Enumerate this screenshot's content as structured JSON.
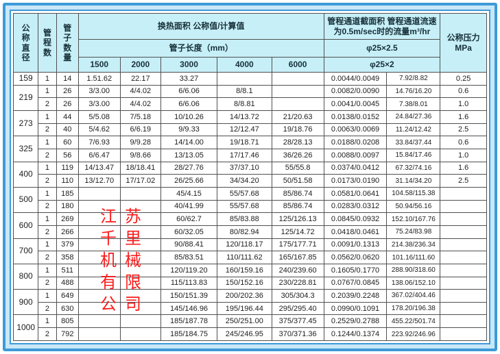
{
  "table": {
    "headers": {
      "diameter": "公称直径",
      "passes": "管程数",
      "tube_count": "管子数量",
      "heat_area": "换热面积 公称值/计算值",
      "tube_length": "管子长度（mm）",
      "length_cols": [
        "1500",
        "2000",
        "3000",
        "4000",
        "6000"
      ],
      "channel": "管程通道截面积 管程通道流速\n为0.5m/sec时的流量m³/hr",
      "phi_row1": "φ25×2.5",
      "phi_row2": "φ25×2",
      "pressure": "公称压力\nMPa"
    },
    "rows": [
      {
        "diameter": "159",
        "diameter_rowspan": 1,
        "pass": "1",
        "tubes": "14",
        "l1500": "1.51.62",
        "l2000": "22.17",
        "l3000": "33.27",
        "l4000": "",
        "l6000": "",
        "section": "0.0044/0.0049",
        "flow": "7.92/8.82",
        "pressure": "0.25"
      },
      {
        "diameter": "219",
        "diameter_rowspan": 2,
        "pass": "1",
        "tubes": "26",
        "l1500": "3/3.00",
        "l2000": "4/4.02",
        "l3000": "6/6.06",
        "l4000": "8/8.1",
        "l6000": "",
        "section": "0.0082/0.0090",
        "flow": "14.76/16.20",
        "pressure": "0.6"
      },
      {
        "pass": "2",
        "tubes": "26",
        "l1500": "3/3.00",
        "l2000": "4/4.02",
        "l3000": "6/6.06",
        "l4000": "8/8.81",
        "l6000": "",
        "section": "0.0041/0.0045",
        "flow": "7.38/8.01",
        "pressure": "1.0"
      },
      {
        "diameter": "273",
        "diameter_rowspan": 2,
        "pass": "1",
        "tubes": "44",
        "l1500": "5/5.08",
        "l2000": "7/5.18",
        "l3000": "10/10.26",
        "l4000": "14/13.72",
        "l6000": "21/20.63",
        "section": "0.0138/0.0152",
        "flow": "24.84/27.36",
        "pressure": "1.6"
      },
      {
        "pass": "2",
        "tubes": "40",
        "l1500": "5/4.62",
        "l2000": "6/6.19",
        "l3000": "9/9.33",
        "l4000": "12/12.47",
        "l6000": "19/18.76",
        "section": "0.0063/0.0069",
        "flow": "11.24/12.42",
        "pressure": "2.5"
      },
      {
        "diameter": "325",
        "diameter_rowspan": 2,
        "pass": "1",
        "tubes": "60",
        "l1500": "7/6.93",
        "l2000": "9/9.28",
        "l3000": "14/14.00",
        "l4000": "19/18.71",
        "l6000": "28/28.13",
        "section": "0.0188/0.0208",
        "flow": "33.84/37.44",
        "pressure": "0.6"
      },
      {
        "pass": "2",
        "tubes": "56",
        "l1500": "6/6.47",
        "l2000": "9/8.66",
        "l3000": "13/13.05",
        "l4000": "17/17.46",
        "l6000": "36/26.26",
        "section": "0.0088/0.0097",
        "flow": "15.84/17.46",
        "pressure": "1.0"
      },
      {
        "diameter": "400",
        "diameter_rowspan": 2,
        "pass": "1",
        "tubes": "119",
        "l1500": "14/13.47",
        "l2000": "18/18.41",
        "l3000": "28/27.76",
        "l4000": "37/37.10",
        "l6000": "55/55.8",
        "section": "0.0374/0.0412",
        "flow": "67.32/74.16",
        "pressure": "1.6"
      },
      {
        "pass": "2",
        "tubes": "110",
        "l1500": "13/12.70",
        "l2000": "17/17.02",
        "l3000": "26/25.66",
        "l4000": "34/34.20",
        "l6000": "50/51.58",
        "section": "0.0173/0.0190",
        "flow": "31.14/34.20",
        "pressure": "2.5"
      },
      {
        "diameter": "500",
        "diameter_rowspan": 2,
        "pass": "1",
        "tubes": "185",
        "l1500": "",
        "l2000": "",
        "l3000": "45/4.15",
        "l4000": "55/57.68",
        "l6000": "85/86.74",
        "section": "0.0581/0.0641",
        "flow": "104.58/115.38",
        "pressure": ""
      },
      {
        "pass": "2",
        "tubes": "180",
        "l1500": "",
        "l2000": "",
        "l3000": "40/41.99",
        "l4000": "55/57.68",
        "l6000": "85/86.74",
        "section": "0.0283/0.0312",
        "flow": "50.94/56.16",
        "pressure": ""
      },
      {
        "diameter": "600",
        "diameter_rowspan": 2,
        "pass": "1",
        "tubes": "269",
        "l1500": "",
        "l2000": "",
        "l3000": "60/62.7",
        "l4000": "85/83.88",
        "l6000": "125/126.13",
        "section": "0.0845/0.0932",
        "flow": "152.10/167.76",
        "pressure": ""
      },
      {
        "pass": "2",
        "tubes": "266",
        "l1500": "",
        "l2000": "",
        "l3000": "60/32.05",
        "l4000": "80/82.94",
        "l6000": "125/14.72",
        "section": "0.0418/0.0461",
        "flow": "75.24/83.98",
        "pressure": ""
      },
      {
        "diameter": "700",
        "diameter_rowspan": 2,
        "pass": "1",
        "tubes": "379",
        "l1500": "",
        "l2000": "",
        "l3000": "90/88.41",
        "l4000": "120/118.17",
        "l6000": "175/177.71",
        "section": "0.0091/0.1313",
        "flow": "214.38/236.34",
        "pressure": ""
      },
      {
        "pass": "2",
        "tubes": "358",
        "l1500": "",
        "l2000": "",
        "l3000": "85/83.51",
        "l4000": "110/111.62",
        "l6000": "165/167.85",
        "section": "0.0562/0.0620",
        "flow": "101.16/111.60",
        "pressure": ""
      },
      {
        "diameter": "800",
        "diameter_rowspan": 2,
        "pass": "1",
        "tubes": "511",
        "l1500": "",
        "l2000": "",
        "l3000": "120/119.20",
        "l4000": "160/159.16",
        "l6000": "240/239.60",
        "section": "0.1605/0.1770",
        "flow": "288.90/318.60",
        "pressure": ""
      },
      {
        "pass": "2",
        "tubes": "488",
        "l1500": "",
        "l2000": "",
        "l3000": "115/113.83",
        "l4000": "150/152.16",
        "l6000": "230/228.81",
        "section": "0.0767/0.0845",
        "flow": "138.06/152.10",
        "pressure": ""
      },
      {
        "diameter": "900",
        "diameter_rowspan": 2,
        "pass": "1",
        "tubes": "649",
        "l1500": "",
        "l2000": "",
        "l3000": "150/151.39",
        "l4000": "200/202.36",
        "l6000": "305/304.3",
        "section": "0.2039/0.2248",
        "flow": "367.02/404.46",
        "pressure": ""
      },
      {
        "pass": "2",
        "tubes": "630",
        "l1500": "",
        "l2000": "",
        "l3000": "145/146.96",
        "l4000": "195/196.44",
        "l6000": "295/295.40",
        "section": "0.0990/0.1091",
        "flow": "178.20/196.38",
        "pressure": ""
      },
      {
        "diameter": "1000",
        "diameter_rowspan": 2,
        "pass": "1",
        "tubes": "805",
        "l1500": "",
        "l2000": "",
        "l3000": "185/187.78",
        "l4000": "250/251.00",
        "l6000": "375/377.45",
        "section": "0.2529/0.2788",
        "flow": "455.22/501.74",
        "pressure": ""
      },
      {
        "pass": "2",
        "tubes": "792",
        "l1500": "",
        "l2000": "",
        "l3000": "185/184.75",
        "l4000": "245/246.95",
        "l6000": "370/371.36",
        "section": "0.1244/0.1374",
        "flow": "223.92/246.96",
        "pressure": ""
      }
    ]
  },
  "watermark": {
    "text": "江苏\n千里\n机械\n有限\n公司",
    "color": "#fb1d1d"
  },
  "colors": {
    "frame_blue": "#3d9ad8",
    "frame_light_blue": "#c8e7f7",
    "header_bg": "#c7eff8",
    "grid_line": "#4f4f4f",
    "watermark_red": "#fb1d1d"
  }
}
